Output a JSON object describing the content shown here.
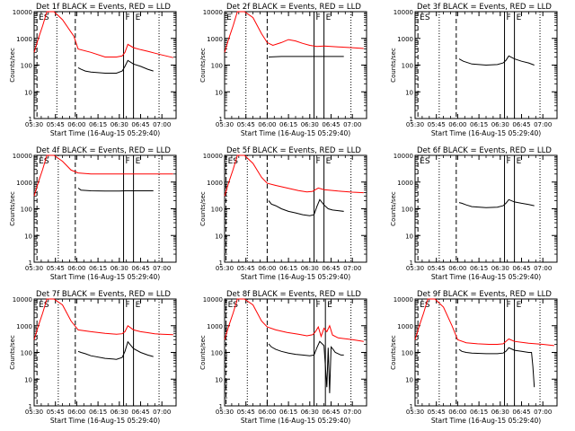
{
  "figure": {
    "background": "#ffffff",
    "ink": "#000000",
    "llid_color": "#ff0000",
    "xlabel": "Start Time (16-Aug-15 05:29:40)",
    "ylabel": "Counts/sec",
    "x_ticklabels": [
      "05:30",
      "05:45",
      "06:00",
      "06:15",
      "06:30",
      "06:45",
      "07:00"
    ],
    "y_ticklabels": [
      "1",
      "10",
      "100",
      "1000",
      "10000"
    ],
    "legend_note": "BLACK = Events, RED = LLD"
  },
  "chart_data": [
    {
      "type": "line",
      "title": "Det 1f BLACK = Events, RED = LLD",
      "ylabel": "Counts/sec",
      "xlabel": "Start Time (16-Aug-15 05:29:40)",
      "x_unit": "minutes after 05:30",
      "xlim": [
        0,
        100
      ],
      "ylim": [
        1,
        10000
      ],
      "yscale": "log",
      "series": [
        {
          "name": "LLD",
          "color": "#ff0000",
          "x": [
            0,
            3,
            6,
            9,
            14,
            20,
            28,
            31,
            40,
            50,
            58,
            62,
            64,
            66,
            70,
            75,
            80,
            85,
            90,
            98
          ],
          "y": [
            300,
            1000,
            3000,
            10000,
            10000,
            5000,
            1200,
            400,
            300,
            200,
            200,
            220,
            300,
            600,
            450,
            380,
            330,
            280,
            240,
            190
          ]
        },
        {
          "name": "Events",
          "color": "#000000",
          "x": [
            31,
            33,
            36,
            40,
            50,
            58,
            62,
            64,
            66,
            70,
            75,
            80,
            84
          ],
          "y": [
            80,
            70,
            60,
            55,
            50,
            50,
            60,
            90,
            150,
            110,
            90,
            70,
            60
          ]
        }
      ],
      "markers": [
        {
          "x": 2,
          "style": "dashed",
          "label": "ES"
        },
        {
          "x": 16,
          "style": "dotted"
        },
        {
          "x": 29,
          "style": "dashed"
        },
        {
          "x": 63,
          "style": "solid",
          "label": "F"
        },
        {
          "x": 70,
          "style": "solid",
          "label": "E"
        },
        {
          "x": 88,
          "style": "dotted"
        }
      ]
    },
    {
      "type": "line",
      "title": "Det 2f BLACK = Events, RED = LLD",
      "ylabel": "Counts/sec",
      "xlabel": "Start Time (16-Aug-15 05:29:40)",
      "x_unit": "minutes after 05:30",
      "xlim": [
        0,
        100
      ],
      "ylim": [
        1,
        10000
      ],
      "yscale": "log",
      "series": [
        {
          "name": "LLD",
          "color": "#ff0000",
          "x": [
            0,
            3,
            6,
            9,
            14,
            20,
            26,
            30,
            34,
            40,
            45,
            50,
            55,
            60,
            65,
            70,
            80,
            90,
            98
          ],
          "y": [
            300,
            1000,
            3000,
            10000,
            10000,
            6000,
            1500,
            700,
            550,
            700,
            900,
            800,
            650,
            550,
            500,
            520,
            480,
            450,
            420
          ]
        },
        {
          "name": "Events",
          "color": "#000000",
          "x": [
            31,
            40,
            50,
            60,
            64,
            70,
            80,
            84
          ],
          "y": [
            200,
            210,
            210,
            210,
            210,
            210,
            210,
            210
          ]
        }
      ],
      "markers": [
        {
          "x": 0,
          "style": "dashed",
          "label": "E"
        },
        {
          "x": 15,
          "style": "dotted"
        },
        {
          "x": 30,
          "style": "dashed"
        },
        {
          "x": 63,
          "style": "solid",
          "label": "F"
        },
        {
          "x": 70,
          "style": "solid",
          "label": "E"
        },
        {
          "x": 89,
          "style": "dotted"
        }
      ]
    },
    {
      "type": "line",
      "title": "Det 3f BLACK = Events, RED = LLD",
      "ylabel": "Counts/sec",
      "xlabel": "Start Time (16-Aug-15 05:29:40)",
      "x_unit": "minutes after 05:30",
      "xlim": [
        0,
        100
      ],
      "ylim": [
        1,
        10000
      ],
      "yscale": "log",
      "series": [
        {
          "name": "Events",
          "color": "#000000",
          "x": [
            31,
            34,
            40,
            50,
            58,
            62,
            64,
            66,
            70,
            75,
            80,
            84
          ],
          "y": [
            170,
            140,
            110,
            100,
            105,
            120,
            150,
            220,
            170,
            140,
            120,
            100
          ]
        }
      ],
      "markers": [
        {
          "x": 2,
          "style": "dashed",
          "label": "ES"
        },
        {
          "x": 17,
          "style": "dotted"
        },
        {
          "x": 29,
          "style": "dashed"
        },
        {
          "x": 63,
          "style": "solid",
          "label": "F"
        },
        {
          "x": 70,
          "style": "solid",
          "label": "E"
        },
        {
          "x": 88,
          "style": "dotted"
        }
      ]
    },
    {
      "type": "line",
      "title": "Det 4f BLACK = Events, RED = LLD",
      "ylabel": "Counts/sec",
      "xlabel": "Start Time (16-Aug-15 05:29:40)",
      "x_unit": "minutes after 05:30",
      "xlim": [
        0,
        100
      ],
      "ylim": [
        1,
        10000
      ],
      "yscale": "log",
      "series": [
        {
          "name": "LLD",
          "color": "#ff0000",
          "x": [
            0,
            3,
            6,
            9,
            14,
            20,
            26,
            31,
            40,
            60,
            80,
            98
          ],
          "y": [
            300,
            1000,
            3000,
            10000,
            10000,
            6000,
            2800,
            2200,
            2000,
            2000,
            2000,
            2000
          ]
        },
        {
          "name": "Events",
          "color": "#000000",
          "x": [
            31,
            33,
            40,
            50,
            60,
            64,
            70,
            80,
            84
          ],
          "y": [
            600,
            500,
            470,
            460,
            460,
            470,
            470,
            470,
            470
          ]
        }
      ],
      "markers": [
        {
          "x": 2,
          "style": "dashed",
          "label": "ES"
        },
        {
          "x": 17,
          "style": "dotted"
        },
        {
          "x": 29,
          "style": "dashed"
        },
        {
          "x": 63,
          "style": "solid",
          "label": "F"
        },
        {
          "x": 70,
          "style": "solid",
          "label": "E"
        },
        {
          "x": 88,
          "style": "dotted"
        }
      ]
    },
    {
      "type": "line",
      "title": "Det 5f BLACK = Events, RED = LLD",
      "ylabel": "Counts/sec",
      "xlabel": "Start Time (16-Aug-15 05:29:40)",
      "x_unit": "minutes after 05:30",
      "xlim": [
        0,
        100
      ],
      "ylim": [
        1,
        10000
      ],
      "yscale": "log",
      "series": [
        {
          "name": "LLD",
          "color": "#ff0000",
          "x": [
            0,
            3,
            6,
            9,
            14,
            20,
            26,
            30,
            36,
            44,
            52,
            58,
            62,
            64,
            66,
            70,
            80,
            90,
            98
          ],
          "y": [
            300,
            1000,
            3000,
            10000,
            10000,
            5000,
            1500,
            900,
            750,
            600,
            480,
            430,
            450,
            520,
            600,
            520,
            460,
            420,
            400
          ]
        },
        {
          "name": "Events",
          "color": "#000000",
          "x": [
            31,
            33,
            36,
            40,
            45,
            50,
            55,
            60,
            63,
            65,
            67,
            70,
            73,
            76,
            80,
            84
          ],
          "y": [
            200,
            150,
            130,
            100,
            80,
            70,
            60,
            55,
            60,
            120,
            220,
            140,
            100,
            90,
            85,
            80
          ]
        }
      ],
      "markers": [
        {
          "x": 1,
          "style": "dashed",
          "label": "ES"
        },
        {
          "x": 16,
          "style": "dotted"
        },
        {
          "x": 30,
          "style": "dashed"
        },
        {
          "x": 63,
          "style": "solid",
          "label": "F"
        },
        {
          "x": 70,
          "style": "solid",
          "label": "E"
        },
        {
          "x": 89,
          "style": "dotted"
        }
      ]
    },
    {
      "type": "line",
      "title": "Det 6f BLACK = Events, RED = LLD",
      "ylabel": "Counts/sec",
      "xlabel": "Start Time (16-Aug-15 05:29:40)",
      "x_unit": "minutes after 05:30",
      "xlim": [
        0,
        100
      ],
      "ylim": [
        1,
        10000
      ],
      "yscale": "log",
      "series": [
        {
          "name": "Events",
          "color": "#000000",
          "x": [
            31,
            33,
            36,
            40,
            50,
            58,
            62,
            64,
            66,
            70,
            75,
            80,
            84
          ],
          "y": [
            170,
            160,
            140,
            120,
            110,
            115,
            130,
            160,
            220,
            180,
            160,
            145,
            130
          ]
        }
      ],
      "markers": [
        {
          "x": 2,
          "style": "dashed",
          "label": "ES"
        },
        {
          "x": 17,
          "style": "dotted"
        },
        {
          "x": 29,
          "style": "dashed"
        },
        {
          "x": 63,
          "style": "solid",
          "label": "F"
        },
        {
          "x": 70,
          "style": "solid",
          "label": "E"
        },
        {
          "x": 88,
          "style": "dotted"
        }
      ]
    },
    {
      "type": "line",
      "title": "Det 7f BLACK = Events, RED = LLD",
      "ylabel": "Counts/sec",
      "xlabel": "Start Time (16-Aug-15 05:29:40)",
      "x_unit": "minutes after 05:30",
      "xlim": [
        0,
        100
      ],
      "ylim": [
        1,
        10000
      ],
      "yscale": "log",
      "series": [
        {
          "name": "LLD",
          "color": "#ff0000",
          "x": [
            0,
            3,
            6,
            9,
            14,
            20,
            26,
            31,
            40,
            50,
            58,
            62,
            64,
            66,
            70,
            75,
            80,
            85,
            90,
            98
          ],
          "y": [
            300,
            1000,
            3000,
            10000,
            10000,
            6000,
            1500,
            700,
            600,
            520,
            480,
            500,
            600,
            1000,
            700,
            600,
            550,
            500,
            480,
            460
          ]
        },
        {
          "name": "Events",
          "color": "#000000",
          "x": [
            31,
            33,
            36,
            40,
            50,
            58,
            62,
            64,
            66,
            70,
            75,
            80,
            84
          ],
          "y": [
            110,
            100,
            90,
            75,
            60,
            55,
            65,
            110,
            250,
            140,
            100,
            80,
            70
          ]
        }
      ],
      "markers": [
        {
          "x": 2,
          "style": "dashed",
          "label": "ES"
        },
        {
          "x": 17,
          "style": "dotted"
        },
        {
          "x": 29,
          "style": "dashed"
        },
        {
          "x": 63,
          "style": "solid",
          "label": "F"
        },
        {
          "x": 70,
          "style": "solid",
          "label": "E"
        },
        {
          "x": 88,
          "style": "dotted"
        }
      ]
    },
    {
      "type": "line",
      "title": "Det 8f BLACK = Events, RED = LLD",
      "ylabel": "Counts/sec",
      "xlabel": "Start Time (16-Aug-15 05:29:40)",
      "x_unit": "minutes after 05:30",
      "xlim": [
        0,
        100
      ],
      "ylim": [
        1,
        10000
      ],
      "yscale": "log",
      "series": [
        {
          "name": "LLD",
          "color": "#ff0000",
          "x": [
            0,
            3,
            6,
            9,
            14,
            20,
            26,
            30,
            36,
            44,
            52,
            58,
            62,
            64,
            66,
            68,
            70,
            72,
            74,
            76,
            80,
            90,
            98
          ],
          "y": [
            300,
            1000,
            3000,
            10000,
            10000,
            6000,
            1500,
            900,
            700,
            560,
            480,
            420,
            460,
            600,
            900,
            400,
            800,
            600,
            1000,
            450,
            350,
            300,
            260
          ]
        },
        {
          "name": "Events",
          "color": "#000000",
          "x": [
            31,
            33,
            36,
            40,
            45,
            50,
            55,
            60,
            63,
            65,
            67,
            70,
            72,
            73,
            74,
            75,
            76,
            78,
            80,
            82,
            84
          ],
          "y": [
            210,
            160,
            130,
            110,
            95,
            85,
            80,
            75,
            80,
            150,
            260,
            180,
            5,
            150,
            3,
            160,
            140,
            100,
            90,
            80,
            80
          ]
        }
      ],
      "markers": [
        {
          "x": 1,
          "style": "dashed",
          "label": "ES"
        },
        {
          "x": 16,
          "style": "dotted"
        },
        {
          "x": 30,
          "style": "dashed"
        },
        {
          "x": 63,
          "style": "solid",
          "label": "F"
        },
        {
          "x": 71,
          "style": "solid",
          "label": "E"
        },
        {
          "x": 89,
          "style": "dotted"
        }
      ]
    },
    {
      "type": "line",
      "title": "Det 9f BLACK = Events, RED = LLD",
      "ylabel": "Counts/sec",
      "xlabel": "Start Time (16-Aug-15 05:29:40)",
      "x_unit": "minutes after 05:30",
      "xlim": [
        0,
        100
      ],
      "ylim": [
        1,
        10000
      ],
      "yscale": "log",
      "series": [
        {
          "name": "LLD",
          "color": "#ff0000",
          "x": [
            0,
            3,
            6,
            9,
            14,
            20,
            26,
            30,
            36,
            44,
            52,
            58,
            62,
            64,
            66,
            70,
            80,
            90,
            98
          ],
          "y": [
            300,
            1000,
            3000,
            10000,
            10000,
            5000,
            1000,
            300,
            230,
            210,
            200,
            200,
            210,
            260,
            320,
            260,
            220,
            200,
            180
          ]
        },
        {
          "name": "Events",
          "color": "#000000",
          "x": [
            31,
            33,
            36,
            40,
            50,
            58,
            62,
            64,
            66,
            70,
            75,
            80,
            82,
            83,
            84
          ],
          "y": [
            130,
            110,
            100,
            95,
            90,
            90,
            95,
            110,
            150,
            120,
            110,
            100,
            100,
            30,
            5
          ]
        }
      ],
      "markers": [
        {
          "x": 2,
          "style": "dashed",
          "label": "ES"
        },
        {
          "x": 17,
          "style": "dotted"
        },
        {
          "x": 29,
          "style": "dashed"
        },
        {
          "x": 63,
          "style": "solid",
          "label": "F"
        },
        {
          "x": 70,
          "style": "solid",
          "label": "E"
        },
        {
          "x": 88,
          "style": "dotted"
        }
      ]
    }
  ]
}
